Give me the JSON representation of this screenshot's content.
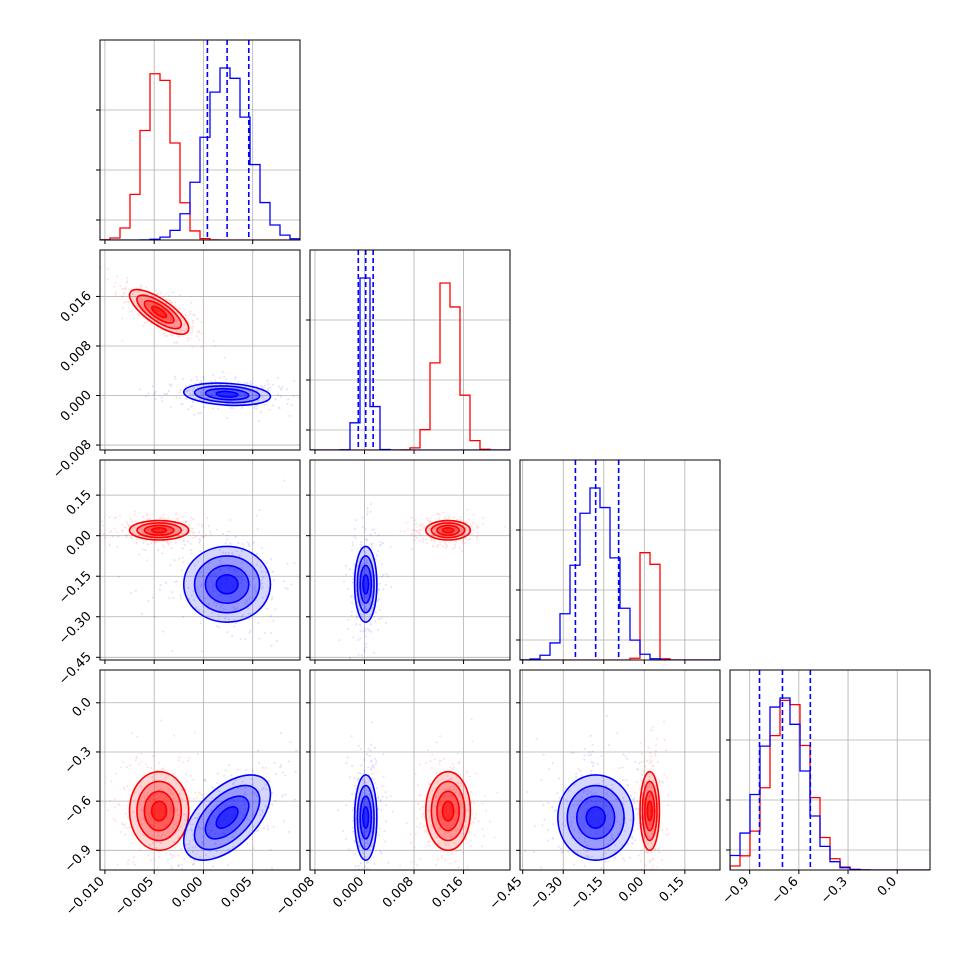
{
  "chart_data": {
    "type": "corner",
    "title": "",
    "parameters": [
      {
        "range": [
          -0.0105,
          0.0098
        ],
        "ticks": [
          -0.01,
          -0.005,
          0.0,
          0.005
        ],
        "tick_labels": [
          "−0.010",
          "−0.005",
          "0.000",
          "0.005"
        ]
      },
      {
        "range": [
          -0.0088,
          0.0235
        ],
        "ticks": [
          -0.008,
          0.0,
          0.008,
          0.016
        ],
        "tick_labels": [
          "−0.008",
          "0.000",
          "0.008",
          "0.016"
        ]
      },
      {
        "range": [
          -0.46,
          0.28
        ],
        "ticks": [
          -0.45,
          -0.3,
          -0.15,
          0.0,
          0.15
        ],
        "tick_labels": [
          "−0.45",
          "−0.30",
          "−0.15",
          "0.00",
          "0.15"
        ]
      },
      {
        "range": [
          -1.02,
          0.2
        ],
        "ticks": [
          -0.9,
          -0.6,
          -0.3,
          0.0
        ],
        "tick_labels": [
          "−0.9",
          "−0.6",
          "−0.3",
          "0.0"
        ]
      }
    ],
    "grid": true,
    "series": [
      {
        "color": "#ff0000",
        "means": [
          -0.0045,
          0.0135,
          0.02,
          -0.66
        ],
        "sigmas": [
          0.0015,
          0.0018,
          0.018,
          0.12
        ],
        "correlations": [
          [
            0,
            1,
            -0.75
          ],
          [
            0,
            2,
            0.0
          ],
          [
            0,
            3,
            0.0
          ],
          [
            1,
            2,
            0.0
          ],
          [
            1,
            3,
            0.0
          ],
          [
            2,
            3,
            0.0
          ]
        ],
        "quantiles": []
      },
      {
        "color": "#0000ff",
        "means": [
          0.0024,
          0.0002,
          -0.18,
          -0.7
        ],
        "sigmas": [
          0.0022,
          0.0009,
          0.07,
          0.13
        ],
        "correlations": [
          [
            0,
            1,
            -0.2
          ],
          [
            0,
            2,
            0.0
          ],
          [
            0,
            3,
            0.55
          ],
          [
            1,
            2,
            0.0
          ],
          [
            1,
            3,
            0.0
          ],
          [
            2,
            3,
            0.0
          ]
        ],
        "quantiles": [
          [
            0.0004,
            0.0024,
            0.0046
          ],
          [
            -0.001,
            0.0002,
            0.0014
          ],
          [
            -0.255,
            -0.18,
            -0.095
          ],
          [
            -0.84,
            -0.7,
            -0.53
          ]
        ]
      }
    ]
  }
}
